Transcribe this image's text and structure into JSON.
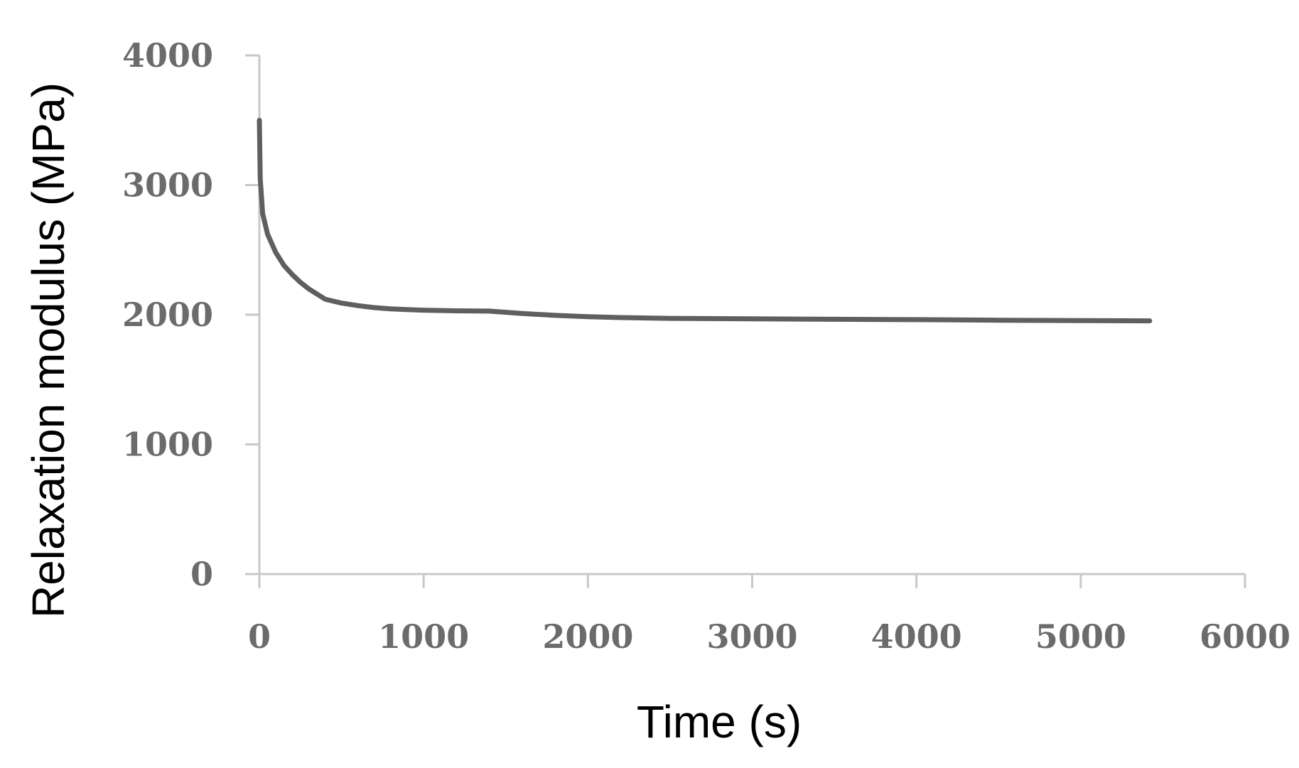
{
  "chart_data": {
    "type": "line",
    "title": "",
    "xlabel": "Time (s)",
    "ylabel": "Relaxation modulus (MPa)",
    "xlim": [
      0,
      6000
    ],
    "ylim": [
      0,
      4000
    ],
    "x_ticks": [
      0,
      1000,
      2000,
      3000,
      4000,
      5000,
      6000
    ],
    "y_ticks": [
      0,
      1000,
      2000,
      3000,
      4000
    ],
    "x_tick_labels": [
      "0",
      "1000",
      "2000",
      "3000",
      "4000",
      "5000",
      "6000"
    ],
    "y_tick_labels": [
      "0",
      "1000",
      "2000",
      "3000",
      "4000"
    ],
    "grid": false,
    "legend": "none",
    "colors": {
      "line": "#5f5f5f",
      "axis": "#c8c8c8",
      "tick_label": "#6b6b6b",
      "axis_title": "#000000"
    },
    "series": [
      {
        "x": [
          0,
          5,
          20,
          50,
          100,
          150,
          200,
          250,
          300,
          350,
          400,
          500,
          600,
          700,
          800,
          900,
          1000,
          1200,
          1400,
          1600,
          1800,
          2000,
          2200,
          2500,
          3000,
          3500,
          4000,
          4500,
          5000,
          5420
        ],
        "y": [
          3500,
          3050,
          2780,
          2620,
          2480,
          2380,
          2310,
          2250,
          2200,
          2160,
          2120,
          2090,
          2070,
          2055,
          2045,
          2040,
          2035,
          2030,
          2028,
          2010,
          1995,
          1985,
          1978,
          1972,
          1968,
          1965,
          1962,
          1958,
          1955,
          1953
        ]
      }
    ]
  }
}
